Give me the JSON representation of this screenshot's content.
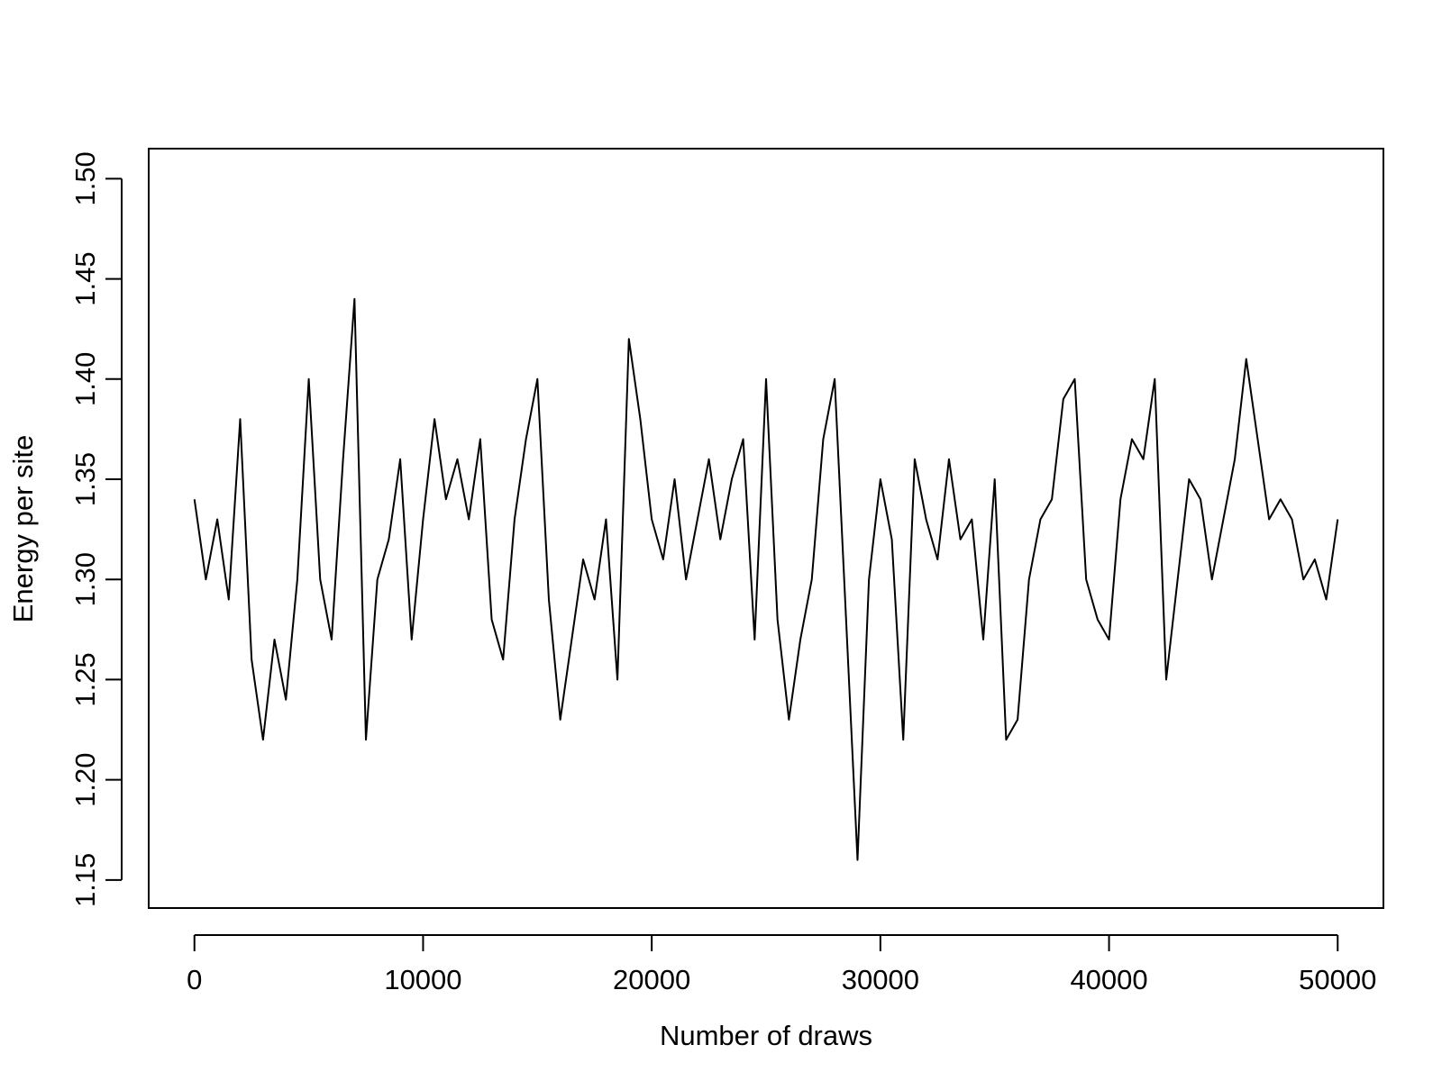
{
  "chart_data": {
    "type": "line",
    "x_label": "Number of draws",
    "y_label": "Energy per site",
    "x": [
      0,
      500,
      1000,
      1500,
      2000,
      2500,
      3000,
      3500,
      4000,
      4500,
      5000,
      5500,
      6000,
      6500,
      7000,
      7500,
      8000,
      8500,
      9000,
      9500,
      10000,
      10500,
      11000,
      11500,
      12000,
      12500,
      13000,
      13500,
      14000,
      14500,
      15000,
      15500,
      16000,
      16500,
      17000,
      17500,
      18000,
      18500,
      19000,
      19500,
      20000,
      20500,
      21000,
      21500,
      22000,
      22500,
      23000,
      23500,
      24000,
      24500,
      25000,
      25500,
      26000,
      26500,
      27000,
      27500,
      28000,
      28500,
      29000,
      29500,
      30000,
      30500,
      31000,
      31500,
      32000,
      32500,
      33000,
      33500,
      34000,
      34500,
      35000,
      35500,
      36000,
      36500,
      37000,
      37500,
      38000,
      38500,
      39000,
      39500,
      40000,
      40500,
      41000,
      41500,
      42000,
      42500,
      43000,
      43500,
      44000,
      44500,
      45000,
      45500,
      46000,
      46500,
      47000,
      47500,
      48000,
      48500,
      49000,
      49500,
      50000
    ],
    "series": [
      {
        "color": "#000000",
        "values": [
          1.34,
          1.3,
          1.33,
          1.29,
          1.38,
          1.26,
          1.22,
          1.27,
          1.24,
          1.3,
          1.4,
          1.3,
          1.27,
          1.36,
          1.44,
          1.22,
          1.3,
          1.32,
          1.36,
          1.27,
          1.33,
          1.38,
          1.34,
          1.36,
          1.33,
          1.37,
          1.28,
          1.26,
          1.33,
          1.37,
          1.4,
          1.29,
          1.23,
          1.27,
          1.31,
          1.29,
          1.33,
          1.25,
          1.42,
          1.38,
          1.33,
          1.31,
          1.35,
          1.3,
          1.33,
          1.36,
          1.32,
          1.35,
          1.37,
          1.27,
          1.4,
          1.28,
          1.23,
          1.27,
          1.3,
          1.37,
          1.4,
          1.28,
          1.16,
          1.3,
          1.35,
          1.32,
          1.22,
          1.36,
          1.33,
          1.31,
          1.36,
          1.32,
          1.33,
          1.27,
          1.35,
          1.22,
          1.23,
          1.3,
          1.33,
          1.34,
          1.39,
          1.4,
          1.3,
          1.28,
          1.27,
          1.34,
          1.37,
          1.36,
          1.4,
          1.25,
          1.3,
          1.35,
          1.34,
          1.3,
          1.33,
          1.36,
          1.41,
          1.37,
          1.33,
          1.34,
          1.33,
          1.3,
          1.31,
          1.29,
          1.33
        ]
      }
    ],
    "xlim": [
      -2000,
      52000
    ],
    "ylim": [
      1.136,
      1.515
    ],
    "xticks": [
      0,
      10000,
      20000,
      30000,
      40000,
      50000
    ],
    "yticks": [
      1.15,
      {
        "value": 1.2,
        "label": "1.20"
      },
      1.25,
      {
        "value": 1.3,
        "label": "1.30"
      },
      1.35,
      {
        "value": 1.4,
        "label": "1.40"
      },
      1.45,
      {
        "value": 1.5,
        "label": "1.50"
      }
    ]
  }
}
